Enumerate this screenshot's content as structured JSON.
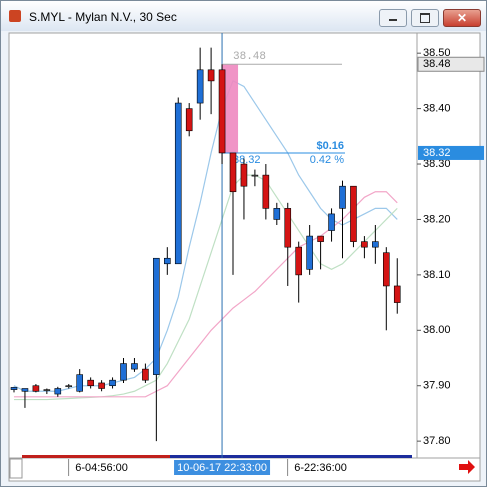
{
  "window_title": "S.MYL - Mylan N.V., 30 Sec",
  "chart_data": {
    "type": "candlestick",
    "categories": [
      null,
      null,
      null,
      null,
      null,
      null,
      null,
      null,
      "6-04:56:00",
      null,
      null,
      null,
      null,
      null,
      null,
      null,
      null,
      null,
      null,
      "10-06-17 22:33:00",
      null,
      null,
      null,
      null,
      null,
      null,
      null,
      null,
      "6-22:36:00",
      null,
      null,
      null,
      null,
      null,
      null,
      null
    ],
    "highlighted_category": 19,
    "open": [
      37.893,
      37.89,
      37.9,
      37.893,
      37.885,
      37.9,
      37.89,
      37.91,
      37.905,
      37.9,
      37.91,
      37.93,
      37.93,
      37.92,
      38.12,
      38.12,
      38.4,
      38.41,
      38.47,
      38.47,
      38.32,
      38.3,
      38.28,
      38.28,
      38.2,
      38.22,
      38.15,
      38.11,
      38.17,
      38.18,
      38.22,
      38.26,
      38.16,
      38.15,
      38.14,
      38.08
    ],
    "high": [
      37.898,
      37.895,
      37.903,
      37.895,
      37.898,
      37.903,
      37.93,
      37.915,
      37.91,
      37.915,
      37.95,
      37.95,
      37.94,
      38.13,
      38.15,
      38.42,
      38.41,
      38.51,
      38.51,
      38.48,
      38.32,
      38.31,
      38.29,
      38.3,
      38.23,
      38.23,
      38.16,
      38.19,
      38.17,
      38.22,
      38.27,
      38.26,
      38.17,
      38.19,
      38.15,
      38.13
    ],
    "low": [
      37.888,
      37.86,
      37.888,
      37.885,
      37.88,
      37.895,
      37.888,
      37.895,
      37.89,
      37.895,
      37.905,
      37.925,
      37.905,
      37.8,
      38.1,
      38.12,
      38.35,
      38.38,
      38.39,
      38.3,
      38.1,
      38.2,
      38.26,
      38.2,
      38.19,
      38.08,
      38.05,
      38.1,
      38.11,
      38.16,
      38.13,
      38.15,
      38.13,
      38.12,
      38.0,
      38.03
    ],
    "close": [
      37.897,
      37.895,
      37.89,
      37.893,
      37.895,
      37.9,
      37.92,
      37.9,
      37.895,
      37.91,
      37.94,
      37.94,
      37.91,
      38.13,
      38.13,
      38.41,
      38.36,
      38.47,
      38.45,
      38.32,
      38.25,
      38.26,
      38.28,
      38.22,
      38.22,
      38.15,
      38.1,
      38.17,
      38.16,
      38.21,
      38.26,
      38.16,
      38.15,
      38.16,
      38.08,
      38.05
    ],
    "up_color": "#1f6fd6",
    "down_color": "#d41414",
    "flat_color": "#888888",
    "overlays": [
      {
        "color": "#9cc8ea",
        "values": [
          37.9,
          37.89,
          37.89,
          37.89,
          37.89,
          37.895,
          37.9,
          37.9,
          37.9,
          37.905,
          37.91,
          37.915,
          37.93,
          37.95,
          38.0,
          38.06,
          38.15,
          38.23,
          38.32,
          38.4,
          38.45,
          38.44,
          38.41,
          38.38,
          38.35,
          38.32,
          38.28,
          38.25,
          38.22,
          38.2,
          38.19,
          38.2,
          38.21,
          38.22,
          38.22,
          38.2
        ]
      },
      {
        "color": "#bfe0c4",
        "values": [
          37.875,
          37.875,
          37.875,
          37.875,
          37.876,
          37.877,
          37.878,
          37.879,
          37.88,
          37.882,
          37.885,
          37.89,
          37.9,
          37.91,
          37.94,
          37.98,
          38.02,
          38.08,
          38.14,
          38.2,
          38.26,
          38.28,
          38.28,
          38.27,
          38.24,
          38.21,
          38.18,
          38.15,
          38.12,
          38.11,
          38.12,
          38.14,
          38.16,
          38.18,
          38.2,
          38.22
        ]
      },
      {
        "color": "#f2a6c8",
        "values": [
          37.88,
          37.88,
          37.88,
          37.88,
          37.88,
          37.88,
          37.88,
          37.88,
          37.88,
          37.88,
          37.88,
          37.88,
          37.88,
          37.89,
          37.9,
          37.925,
          37.95,
          37.975,
          38.0,
          38.02,
          38.04,
          38.055,
          38.07,
          38.09,
          38.11,
          38.13,
          38.15,
          38.16,
          38.17,
          38.185,
          38.2,
          38.22,
          38.24,
          38.25,
          38.25,
          38.23
        ]
      }
    ],
    "ylim": [
      37.775,
      38.531
    ],
    "yticks": [
      {
        "value": 38.5,
        "label": "38.50"
      },
      {
        "value": 38.4,
        "label": "38.40"
      },
      {
        "value": 38.3,
        "label": "38.30"
      },
      {
        "value": 38.2,
        "label": "38.20"
      },
      {
        "value": 38.1,
        "label": "38.10"
      },
      {
        "value": 38.0,
        "label": "38.00"
      },
      {
        "value": 37.9,
        "label": "37.90"
      },
      {
        "value": 37.8,
        "label": "37.80"
      }
    ],
    "measure": {
      "start": 38.48,
      "end": 38.32,
      "change": "$0.16",
      "percent": "0.42 %"
    }
  }
}
